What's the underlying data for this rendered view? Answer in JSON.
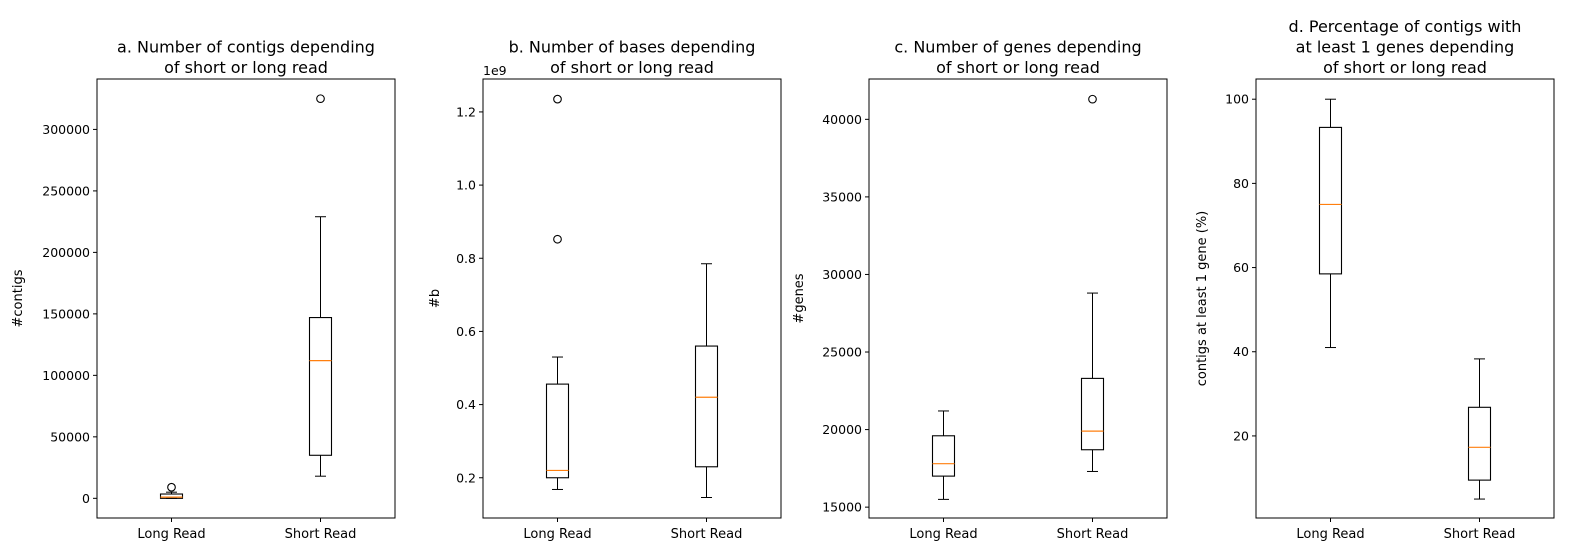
{
  "figure": {
    "background": "#ffffff",
    "box_color": "#000000",
    "median_color": "#ff7f0e"
  },
  "chart_data": [
    {
      "type": "box",
      "title": [
        "a. Number of contigs depending",
        "of short or long read"
      ],
      "ylabel": "#contigs",
      "offset_label": "",
      "ylim": [
        -16000,
        341000
      ],
      "yticks": [
        0,
        50000,
        100000,
        150000,
        200000,
        250000,
        300000
      ],
      "ytick_labels": [
        "0",
        "50000",
        "100000",
        "150000",
        "200000",
        "250000",
        "300000"
      ],
      "categories": [
        "Long Read",
        "Short Read"
      ],
      "boxes": [
        {
          "whisker_low": 0,
          "q1": 0,
          "median": 1000,
          "q3": 3500,
          "whisker_high": 5000,
          "outliers": [
            9000
          ]
        },
        {
          "whisker_low": 18000,
          "q1": 35000,
          "median": 112000,
          "q3": 147000,
          "whisker_high": 229000,
          "outliers": [
            325000
          ]
        }
      ]
    },
    {
      "type": "box",
      "title": [
        "b. Number of bases depending",
        "of short or long read"
      ],
      "ylabel": "#b",
      "offset_label": "1e9",
      "ylim": [
        0.09,
        1.29
      ],
      "yticks": [
        0.2,
        0.4,
        0.6,
        0.8,
        1.0,
        1.2
      ],
      "ytick_labels": [
        "0.2",
        "0.4",
        "0.6",
        "0.8",
        "1.0",
        "1.2"
      ],
      "categories": [
        "Long Read",
        "Short Read"
      ],
      "boxes": [
        {
          "whisker_low": 0.168,
          "q1": 0.2,
          "median": 0.22,
          "q3": 0.456,
          "whisker_high": 0.53,
          "outliers": [
            0.852,
            1.235
          ]
        },
        {
          "whisker_low": 0.146,
          "q1": 0.23,
          "median": 0.42,
          "q3": 0.56,
          "whisker_high": 0.785,
          "outliers": []
        }
      ]
    },
    {
      "type": "box",
      "title": [
        "c. Number of genes depending",
        "of short or long read"
      ],
      "ylabel": "#genes",
      "offset_label": "",
      "ylim": [
        14300,
        42600
      ],
      "yticks": [
        15000,
        20000,
        25000,
        30000,
        35000,
        40000
      ],
      "ytick_labels": [
        "15000",
        "20000",
        "25000",
        "30000",
        "35000",
        "40000"
      ],
      "categories": [
        "Long Read",
        "Short Read"
      ],
      "boxes": [
        {
          "whisker_low": 15500,
          "q1": 17000,
          "median": 17800,
          "q3": 19600,
          "whisker_high": 21200,
          "outliers": []
        },
        {
          "whisker_low": 17300,
          "q1": 18700,
          "median": 19900,
          "q3": 23300,
          "whisker_high": 28800,
          "outliers": [
            41300
          ]
        }
      ]
    },
    {
      "type": "box",
      "title": [
        "d. Percentage of contigs with",
        "at least 1 genes depending",
        "of short or long read"
      ],
      "ylabel": "contigs at least 1 gene (%)",
      "offset_label": "",
      "ylim": [
        0.5,
        104.8
      ],
      "yticks": [
        20,
        40,
        60,
        80,
        100
      ],
      "ytick_labels": [
        "20",
        "40",
        "60",
        "80",
        "100"
      ],
      "categories": [
        "Long Read",
        "Short Read"
      ],
      "boxes": [
        {
          "whisker_low": 41,
          "q1": 58.5,
          "median": 75,
          "q3": 93.3,
          "whisker_high": 100,
          "outliers": []
        },
        {
          "whisker_low": 5,
          "q1": 9.5,
          "median": 17.3,
          "q3": 26.8,
          "whisker_high": 38.3,
          "outliers": []
        }
      ]
    }
  ]
}
